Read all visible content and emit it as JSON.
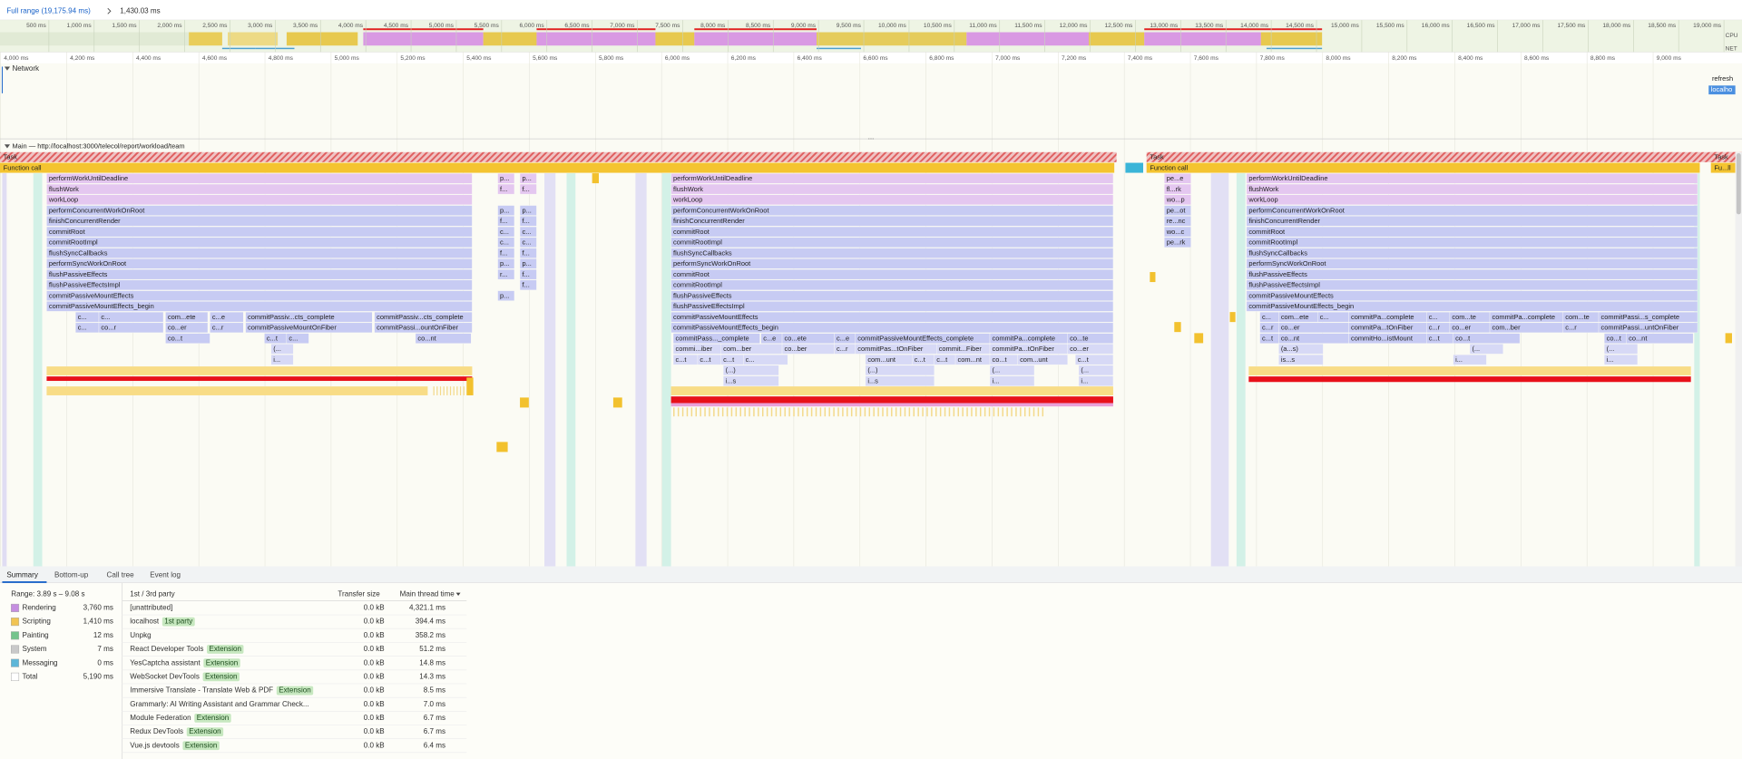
{
  "toolbar": {
    "full_range": "Full range (19,175.94 ms)",
    "selection": "1,430.03 ms"
  },
  "overview": {
    "ticks": [
      "500 ms",
      "1,000 ms",
      "1,500 ms",
      "2,000 ms",
      "2,500 ms",
      "3,000 ms",
      "3,500 ms",
      "4,000 ms",
      "4,500 ms",
      "5,000 ms",
      "5,500 ms",
      "6,000 ms",
      "6,500 ms",
      "7,000 ms",
      "7,500 ms",
      "8,000 ms",
      "8,500 ms",
      "9,000 ms",
      "9,500 ms",
      "10,000 ms",
      "10,500 ms",
      "11,000 ms",
      "11,500 ms",
      "12,000 ms",
      "12,500 ms",
      "13,000 ms",
      "13,500 ms",
      "14,000 ms",
      "14,500 ms",
      "15,000 ms",
      "15,500 ms",
      "16,000 ms",
      "16,500 ms",
      "17,000 ms",
      "17,500 ms",
      "18,000 ms",
      "18,500 ms",
      "19,000 ms"
    ],
    "cpu_label": "CPU",
    "net_label": "NET"
  },
  "ruler": {
    "ticks": [
      "4,000 ms",
      "4,200 ms",
      "4,400 ms",
      "4,600 ms",
      "4,800 ms",
      "5,000 ms",
      "5,200 ms",
      "5,400 ms",
      "5,600 ms",
      "5,800 ms",
      "6,000 ms",
      "6,200 ms",
      "6,400 ms",
      "6,600 ms",
      "6,800 ms",
      "7,000 ms",
      "7,200 ms",
      "7,400 ms",
      "7,600 ms",
      "7,800 ms",
      "8,000 ms",
      "8,200 ms",
      "8,400 ms",
      "8,600 ms",
      "8,800 ms",
      "9,000 ms"
    ]
  },
  "network": {
    "title": "Network",
    "requests": [
      "refresh",
      "localho"
    ]
  },
  "main": {
    "title": "Main — http://localhost:3000/telecol/report/workload/team",
    "tasks": [
      "Task",
      "Task",
      "Task"
    ],
    "calls": [
      "Function call",
      "Function call",
      "Fu...ll"
    ],
    "stack_a": [
      "performWorkUntilDeadline",
      "flushWork",
      "workLoop",
      "performConcurrentWorkOnRoot",
      "finishConcurrentRender",
      "commitRoot",
      "commitRootImpl",
      "flushSyncCallbacks",
      "performSyncWorkOnRoot",
      "flushPassiveEffects",
      "flushPassiveEffectsImpl",
      "commitPassiveMountEffects",
      "commitPassiveMountEffects_begin"
    ],
    "stack_b": [
      "performWorkUntilDeadline",
      "flushWork",
      "workLoop",
      "performConcurrentWorkOnRoot",
      "finishConcurrentRender",
      "commitRoot",
      "commitRootImpl",
      "flushSyncCallbacks",
      "performSyncWorkOnRoot",
      "commitRoot",
      "commitRootImpl",
      "flushPassiveEffects",
      "flushPassiveEffectsImpl",
      "commitPassiveMountEffects",
      "commitPassiveMountEffects_begin"
    ],
    "stack_c": [
      "performWorkUntilDeadline",
      "flushWork",
      "workLoop",
      "performConcurrentWorkOnRoot",
      "finishConcurrentRender",
      "commitRoot",
      "commitRootImpl",
      "flushSyncCallbacks",
      "performSyncWorkOnRoot",
      "flushPassiveEffects",
      "flushPassiveEffectsImpl",
      "commitPassiveMountEffects",
      "commitPassiveMountEffects_begin"
    ],
    "stack_p1": [
      "p...",
      "f...",
      "p...",
      "f...",
      "c...",
      "c...",
      "f...",
      "p...",
      "r...",
      "p..."
    ],
    "stack_p2": [
      "p...",
      "f...",
      "p...",
      "f...",
      "c...",
      "c...",
      "f...",
      "p...",
      "f...",
      "f..."
    ],
    "stack_d": [
      "pe...e",
      "fl...rk",
      "wo...p",
      "pe...ot",
      "re...nc",
      "wo...c",
      "pe...rk"
    ],
    "fragments": [
      [
        "c...",
        "c...",
        "com...ete",
        "c...e",
        "commitPassiv...cts_complete",
        "commitPassiv...cts_complete"
      ],
      [
        "c...",
        "co...r",
        "co...er",
        "c...r",
        "commitPassiveMountOnFiber",
        "commitPassi...ountOnFiber"
      ],
      [
        "co...t",
        "c...t",
        "c...",
        "co...nt"
      ],
      [
        "(..."
      ],
      [
        "i..."
      ],
      [
        "commitPass..._complete",
        "c...e",
        "co...ete",
        "c...e",
        "commitPassiveMountEffects_complete",
        "commitPa...complete",
        "co...te"
      ],
      [
        "commi...iber",
        "com...ber",
        "co...ber",
        "c...r",
        "commitPas...tOnFiber",
        "commit...Fiber",
        "commitPa...tOnFiber",
        "co...er"
      ],
      [
        "c...t",
        "c...t",
        "c...t",
        "c...",
        "com...unt",
        "c...t",
        "c...t",
        "com...nt",
        "co...t",
        "com...unt",
        "c...t"
      ],
      [
        "(...)",
        "(...)",
        "(...",
        "(..."
      ],
      [
        "i...s",
        "i...s",
        "i...",
        "i..."
      ],
      [
        "c...",
        "com...ete",
        "c...",
        "commitPa...complete",
        "c...",
        "com...te",
        "commitPa...complete",
        "com...te",
        "commitPassi...s_complete"
      ],
      [
        "c...r",
        "co...er",
        "commitPa...tOnFiber",
        "c...r",
        "co...er",
        "com...ber",
        "c...r",
        "commitPassi...untOnFiber"
      ],
      [
        "c...t",
        "co...nt",
        "commitHo...istMount",
        "c...t",
        "co...t",
        "co...t",
        "co...nt"
      ],
      [
        "(a...s)",
        "(...",
        "(..."
      ],
      [
        "is...s",
        "i...",
        "i..."
      ]
    ]
  },
  "tabs": [
    "Summary",
    "Bottom-up",
    "Call tree",
    "Event log"
  ],
  "summary": {
    "range": "Range: 3.89 s – 9.08 s",
    "categories": [
      {
        "name": "Rendering",
        "value": "3,760 ms"
      },
      {
        "name": "Scripting",
        "value": "1,410 ms"
      },
      {
        "name": "Painting",
        "value": "12 ms"
      },
      {
        "name": "System",
        "value": "7 ms"
      },
      {
        "name": "Messaging",
        "value": "0 ms"
      },
      {
        "name": "Total",
        "value": "5,190 ms"
      }
    ]
  },
  "party_table": {
    "headers": [
      "1st / 3rd party",
      "Transfer size",
      "Main thread time"
    ],
    "rows": [
      {
        "name": "[unattributed]",
        "transfer": "0.0 kB",
        "time": "4,321.1 ms"
      },
      {
        "name": "localhost",
        "badge": "1st party",
        "transfer": "0.0 kB",
        "time": "394.4 ms"
      },
      {
        "name": "Unpkg",
        "transfer": "0.0 kB",
        "time": "358.2 ms"
      },
      {
        "name": "React Developer Tools",
        "badge": "Extension",
        "transfer": "0.0 kB",
        "time": "51.2 ms"
      },
      {
        "name": "YesCaptcha assistant",
        "badge": "Extension",
        "transfer": "0.0 kB",
        "time": "14.8 ms"
      },
      {
        "name": "WebSocket DevTools",
        "badge": "Extension",
        "transfer": "0.0 kB",
        "time": "14.3 ms"
      },
      {
        "name": "Immersive Translate - Translate Web & PDF",
        "badge": "Extension",
        "transfer": "0.0 kB",
        "time": "8.5 ms"
      },
      {
        "name": "Grammarly: AI Writing Assistant and Grammar Check...",
        "transfer": "0.0 kB",
        "time": "7.0 ms"
      },
      {
        "name": "Module Federation",
        "badge": "Extension",
        "transfer": "0.0 kB",
        "time": "6.7 ms"
      },
      {
        "name": "Redux DevTools",
        "badge": "Extension",
        "transfer": "0.0 kB",
        "time": "6.7 ms"
      },
      {
        "name": "Vue.js devtools",
        "badge": "Extension",
        "transfer": "0.0 kB",
        "time": "6.4 ms"
      }
    ]
  }
}
